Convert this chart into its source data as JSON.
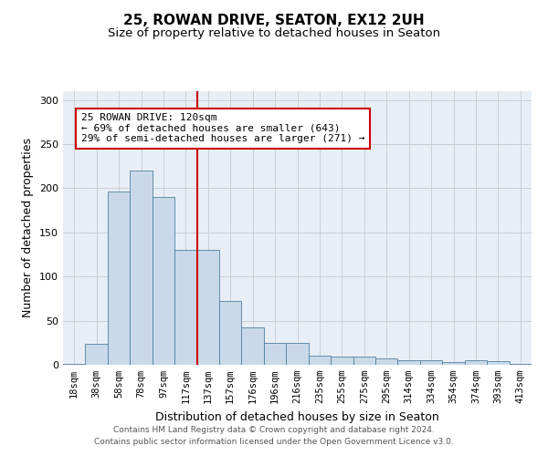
{
  "title_line1": "25, ROWAN DRIVE, SEATON, EX12 2UH",
  "title_line2": "Size of property relative to detached houses in Seaton",
  "xlabel": "Distribution of detached houses by size in Seaton",
  "ylabel": "Number of detached properties",
  "footer_line1": "Contains HM Land Registry data © Crown copyright and database right 2024.",
  "footer_line2": "Contains public sector information licensed under the Open Government Licence v3.0.",
  "annotation_line1": "25 ROWAN DRIVE: 120sqm",
  "annotation_line2": "← 69% of detached houses are smaller (643)",
  "annotation_line3": "29% of semi-detached houses are larger (271) →",
  "bar_labels": [
    "18sqm",
    "38sqm",
    "58sqm",
    "78sqm",
    "97sqm",
    "117sqm",
    "137sqm",
    "157sqm",
    "176sqm",
    "196sqm",
    "216sqm",
    "235sqm",
    "255sqm",
    "275sqm",
    "295sqm",
    "314sqm",
    "334sqm",
    "354sqm",
    "374sqm",
    "393sqm",
    "413sqm"
  ],
  "bar_values": [
    1,
    24,
    196,
    220,
    190,
    130,
    130,
    72,
    42,
    25,
    25,
    10,
    9,
    9,
    7,
    5,
    5,
    3,
    5,
    4,
    1
  ],
  "bar_color": "#c9d9e9",
  "bar_edge_color": "#4f7fa0",
  "vline_color": "#cc0000",
  "vline_x": 5.5,
  "box_color": "#cc0000",
  "ylim": [
    0,
    310
  ],
  "yticks": [
    0,
    50,
    100,
    150,
    200,
    250,
    300
  ],
  "grid_color": "#c8c8d0",
  "bg_color": "#e8eef6",
  "title_fontsize": 11,
  "subtitle_fontsize": 9.5,
  "axis_label_fontsize": 9,
  "tick_fontsize": 7.5,
  "annotation_fontsize": 8,
  "footer_fontsize": 6.5
}
